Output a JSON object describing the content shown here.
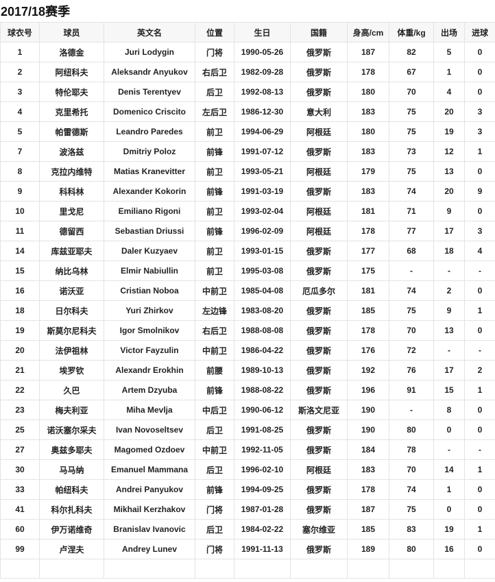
{
  "title": "2017/18赛季",
  "headers": [
    "球衣号",
    "球员",
    "英文名",
    "位置",
    "生日",
    "国籍",
    "身高/cm",
    "体重/kg",
    "出场",
    "进球"
  ],
  "rows": [
    [
      "1",
      "洛德金",
      "Juri Lodygin",
      "门将",
      "1990-05-26",
      "俄罗斯",
      "187",
      "82",
      "5",
      "0"
    ],
    [
      "2",
      "阿纽科夫",
      "Aleksandr Anyukov",
      "右后卫",
      "1982-09-28",
      "俄罗斯",
      "178",
      "67",
      "1",
      "0"
    ],
    [
      "3",
      "特伦耶夫",
      "Denis Terentyev",
      "后卫",
      "1992-08-13",
      "俄罗斯",
      "180",
      "70",
      "4",
      "0"
    ],
    [
      "4",
      "克里希托",
      "Domenico Criscito",
      "左后卫",
      "1986-12-30",
      "意大利",
      "183",
      "75",
      "20",
      "3"
    ],
    [
      "5",
      "帕雷德斯",
      "Leandro Paredes",
      "前卫",
      "1994-06-29",
      "阿根廷",
      "180",
      "75",
      "19",
      "3"
    ],
    [
      "7",
      "波洛兹",
      "Dmitriy Poloz",
      "前锋",
      "1991-07-12",
      "俄罗斯",
      "183",
      "73",
      "12",
      "1"
    ],
    [
      "8",
      "克拉内维特",
      "Matias Kranevitter",
      "前卫",
      "1993-05-21",
      "阿根廷",
      "179",
      "75",
      "13",
      "0"
    ],
    [
      "9",
      "科科林",
      "Alexander Kokorin",
      "前锋",
      "1991-03-19",
      "俄罗斯",
      "183",
      "74",
      "20",
      "9"
    ],
    [
      "10",
      "里戈尼",
      "Emiliano Rigoni",
      "前卫",
      "1993-02-04",
      "阿根廷",
      "181",
      "71",
      "9",
      "0"
    ],
    [
      "11",
      "德留西",
      "Sebastian Driussi",
      "前锋",
      "1996-02-09",
      "阿根廷",
      "178",
      "77",
      "17",
      "3"
    ],
    [
      "14",
      "库兹亚耶夫",
      "Daler Kuzyaev",
      "前卫",
      "1993-01-15",
      "俄罗斯",
      "177",
      "68",
      "18",
      "4"
    ],
    [
      "15",
      "纳比乌林",
      "Elmir Nabiullin",
      "前卫",
      "1995-03-08",
      "俄罗斯",
      "175",
      "-",
      "-",
      "-"
    ],
    [
      "16",
      "诺沃亚",
      "Cristian Noboa",
      "中前卫",
      "1985-04-08",
      "厄瓜多尔",
      "181",
      "74",
      "2",
      "0"
    ],
    [
      "18",
      "日尔科夫",
      "Yuri Zhirkov",
      "左边锋",
      "1983-08-20",
      "俄罗斯",
      "185",
      "75",
      "9",
      "1"
    ],
    [
      "19",
      "斯莫尔尼科夫",
      "Igor Smolnikov",
      "右后卫",
      "1988-08-08",
      "俄罗斯",
      "178",
      "70",
      "13",
      "0"
    ],
    [
      "20",
      "法伊祖林",
      "Victor Fayzulin",
      "中前卫",
      "1986-04-22",
      "俄罗斯",
      "176",
      "72",
      "-",
      "-"
    ],
    [
      "21",
      "埃罗钦",
      "Alexandr Erokhin",
      "前腰",
      "1989-10-13",
      "俄罗斯",
      "192",
      "76",
      "17",
      "2"
    ],
    [
      "22",
      "久巴",
      "Artem Dzyuba",
      "前锋",
      "1988-08-22",
      "俄罗斯",
      "196",
      "91",
      "15",
      "1"
    ],
    [
      "23",
      "梅夫利亚",
      "Miha Mevlja",
      "中后卫",
      "1990-06-12",
      "斯洛文尼亚",
      "190",
      "-",
      "8",
      "0"
    ],
    [
      "25",
      "诺沃塞尔采夫",
      "Ivan Novoseltsev",
      "后卫",
      "1991-08-25",
      "俄罗斯",
      "190",
      "80",
      "0",
      "0"
    ],
    [
      "27",
      "奥兹多耶夫",
      "Magomed Ozdoev",
      "中前卫",
      "1992-11-05",
      "俄罗斯",
      "184",
      "78",
      "-",
      "-"
    ],
    [
      "30",
      "马马纳",
      "Emanuel Mammana",
      "后卫",
      "1996-02-10",
      "阿根廷",
      "183",
      "70",
      "14",
      "1"
    ],
    [
      "33",
      "帕纽科夫",
      "Andrei Panyukov",
      "前锋",
      "1994-09-25",
      "俄罗斯",
      "178",
      "74",
      "1",
      "0"
    ],
    [
      "41",
      "科尔扎科夫",
      "Mikhail Kerzhakov",
      "门将",
      "1987-01-28",
      "俄罗斯",
      "187",
      "75",
      "0",
      "0"
    ],
    [
      "60",
      "伊万诺维奇",
      "Branislav Ivanovic",
      "后卫",
      "1984-02-22",
      "塞尔维亚",
      "185",
      "83",
      "19",
      "1"
    ],
    [
      "99",
      "卢涅夫",
      "Andrey Lunev",
      "门将",
      "1991-11-13",
      "俄罗斯",
      "189",
      "80",
      "16",
      "0"
    ]
  ]
}
